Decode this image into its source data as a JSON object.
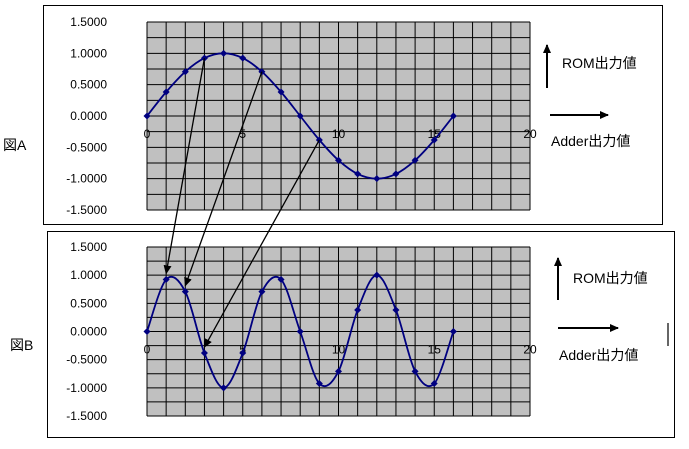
{
  "figures": {
    "a": {
      "label": "図A",
      "y_axis_label": "ROM出力値",
      "x_axis_label": "Adder出力値"
    },
    "b": {
      "label": "図B",
      "y_axis_label": "ROM出力値",
      "x_axis_label": "Adder出力値"
    }
  },
  "colors": {
    "plot_bg": "#c0c0c0",
    "grid": "#000000",
    "series": "#000080",
    "arrow": "#000000"
  },
  "chart_data": [
    {
      "type": "line",
      "id": "A",
      "xlim": [
        0,
        20
      ],
      "ylim": [
        -1.5,
        1.5
      ],
      "x_ticks": [
        "0",
        "5",
        "10",
        "15",
        "20"
      ],
      "y_ticks": [
        "1.5000",
        "1.0000",
        "0.5000",
        "0.0000",
        "-0.5000",
        "-1.0000",
        "-1.5000"
      ],
      "grid": true,
      "x": [
        0,
        1,
        2,
        3,
        4,
        5,
        6,
        7,
        8,
        9,
        10,
        11,
        12,
        13,
        14,
        15,
        16
      ],
      "y": [
        0,
        0.3827,
        0.7071,
        0.9239,
        1,
        0.9239,
        0.7071,
        0.3827,
        0,
        -0.3827,
        -0.7071,
        -0.9239,
        -1,
        -0.9239,
        -0.7071,
        -0.3827,
        0
      ]
    },
    {
      "type": "line",
      "id": "B",
      "xlim": [
        0,
        20
      ],
      "ylim": [
        -1.5,
        1.5
      ],
      "x_ticks": [
        "0",
        "5",
        "10",
        "15",
        "20"
      ],
      "y_ticks": [
        "1.5000",
        "1.0000",
        "0.5000",
        "0.0000",
        "-0.5000",
        "-1.0000",
        "-1.5000"
      ],
      "grid": true,
      "x": [
        0,
        1,
        2,
        3,
        4,
        5,
        6,
        7,
        8,
        9,
        10,
        11,
        12,
        13,
        14,
        15,
        16
      ],
      "y": [
        0,
        0.9239,
        0.7071,
        -0.3827,
        -1,
        -0.3827,
        0.7071,
        0.9239,
        0,
        -0.9239,
        -0.7071,
        0.3827,
        1,
        0.3827,
        -0.7071,
        -0.9239,
        0
      ]
    }
  ]
}
